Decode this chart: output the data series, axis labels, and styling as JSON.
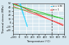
{
  "xlabel": "Temperature (°C)",
  "ylabel": "Thermal stress (MPa)",
  "xlim": [
    -100,
    700
  ],
  "ylim": [
    -30,
    50
  ],
  "x_ticks": [
    -100,
    0,
    100,
    200,
    300,
    400,
    500,
    600,
    700
  ],
  "y_ticks": [
    -20,
    -10,
    0,
    10,
    20,
    30,
    40,
    50
  ],
  "legend_entries": [
    "α = 1.95",
    "α = 1"
  ],
  "legend_colors": [
    "#00aaff",
    "#ff0000"
  ],
  "vline_x": 500,
  "vline_color": "#444444",
  "background_color": "#d8e8f0",
  "grid_color": "#ffffff",
  "T0": 20,
  "cyan_T_start": -100,
  "cyan_T_end": 120,
  "red_T_start": -100,
  "red_T_end": 680,
  "green_T_start": -100,
  "green_T_end": 680,
  "cyan_slope1": -0.55,
  "cyan_slope2": -0.45,
  "cyan_intercept1": 45,
  "cyan_intercept2": 38,
  "red_slope1": -0.075,
  "red_slope2": -0.06,
  "red_intercept1": 42,
  "red_intercept2": 35,
  "green_slope1": -0.048,
  "green_slope2": -0.038,
  "green_intercept1": 42,
  "green_intercept2": 35
}
